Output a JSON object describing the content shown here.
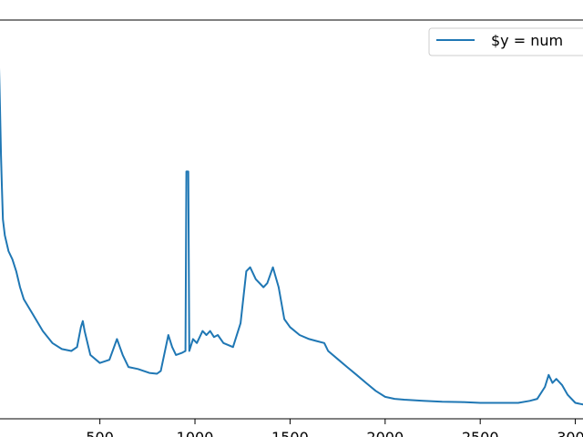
{
  "chart_data": {
    "type": "line",
    "title": "",
    "xlabel": "",
    "ylabel": "",
    "xlim": [
      -30,
      3050
    ],
    "grid": false,
    "legend": {
      "placement": "top-right",
      "entries": [
        "$y = num"
      ]
    },
    "colors": {
      "series": "#1f77b4",
      "axes": "#000000",
      "legend_border": "#cccccc"
    },
    "x_ticks": [
      {
        "value": 500,
        "label": "500"
      },
      {
        "value": 1000,
        "label": "1000"
      },
      {
        "value": 1500,
        "label": "1500"
      },
      {
        "value": 2000,
        "label": "2000"
      },
      {
        "value": 2500,
        "label": "2500"
      },
      {
        "value": 3000,
        "label": "3000"
      }
    ],
    "ylim": [
      0,
      1
    ],
    "series": [
      {
        "name": "$y = num",
        "points": [
          [
            -30,
            0.88
          ],
          [
            -25,
            0.78
          ],
          [
            -20,
            0.66
          ],
          [
            -15,
            0.58
          ],
          [
            -10,
            0.5
          ],
          [
            0,
            0.46
          ],
          [
            20,
            0.42
          ],
          [
            40,
            0.4
          ],
          [
            60,
            0.37
          ],
          [
            80,
            0.33
          ],
          [
            100,
            0.3
          ],
          [
            150,
            0.26
          ],
          [
            200,
            0.22
          ],
          [
            250,
            0.19
          ],
          [
            300,
            0.175
          ],
          [
            350,
            0.17
          ],
          [
            380,
            0.18
          ],
          [
            400,
            0.23
          ],
          [
            410,
            0.245
          ],
          [
            420,
            0.22
          ],
          [
            450,
            0.16
          ],
          [
            500,
            0.14
          ],
          [
            550,
            0.148
          ],
          [
            590,
            0.2
          ],
          [
            620,
            0.16
          ],
          [
            650,
            0.13
          ],
          [
            700,
            0.125
          ],
          [
            760,
            0.115
          ],
          [
            800,
            0.113
          ],
          [
            820,
            0.12
          ],
          [
            860,
            0.21
          ],
          [
            880,
            0.18
          ],
          [
            900,
            0.16
          ],
          [
            930,
            0.165
          ],
          [
            950,
            0.17
          ],
          [
            955,
            0.62
          ],
          [
            965,
            0.62
          ],
          [
            970,
            0.17
          ],
          [
            990,
            0.2
          ],
          [
            1010,
            0.19
          ],
          [
            1040,
            0.22
          ],
          [
            1060,
            0.21
          ],
          [
            1080,
            0.22
          ],
          [
            1100,
            0.205
          ],
          [
            1120,
            0.21
          ],
          [
            1150,
            0.19
          ],
          [
            1200,
            0.18
          ],
          [
            1240,
            0.24
          ],
          [
            1270,
            0.37
          ],
          [
            1290,
            0.38
          ],
          [
            1320,
            0.35
          ],
          [
            1360,
            0.33
          ],
          [
            1380,
            0.34
          ],
          [
            1410,
            0.38
          ],
          [
            1440,
            0.33
          ],
          [
            1470,
            0.25
          ],
          [
            1500,
            0.23
          ],
          [
            1550,
            0.21
          ],
          [
            1600,
            0.2
          ],
          [
            1640,
            0.195
          ],
          [
            1680,
            0.19
          ],
          [
            1700,
            0.17
          ],
          [
            1750,
            0.15
          ],
          [
            1800,
            0.13
          ],
          [
            1850,
            0.11
          ],
          [
            1900,
            0.09
          ],
          [
            1950,
            0.07
          ],
          [
            2000,
            0.055
          ],
          [
            2050,
            0.05
          ],
          [
            2100,
            0.048
          ],
          [
            2200,
            0.045
          ],
          [
            2300,
            0.043
          ],
          [
            2400,
            0.042
          ],
          [
            2500,
            0.04
          ],
          [
            2600,
            0.04
          ],
          [
            2700,
            0.04
          ],
          [
            2760,
            0.045
          ],
          [
            2800,
            0.05
          ],
          [
            2840,
            0.08
          ],
          [
            2860,
            0.11
          ],
          [
            2880,
            0.09
          ],
          [
            2900,
            0.1
          ],
          [
            2930,
            0.085
          ],
          [
            2960,
            0.06
          ],
          [
            3000,
            0.04
          ],
          [
            3050,
            0.035
          ]
        ]
      }
    ]
  }
}
